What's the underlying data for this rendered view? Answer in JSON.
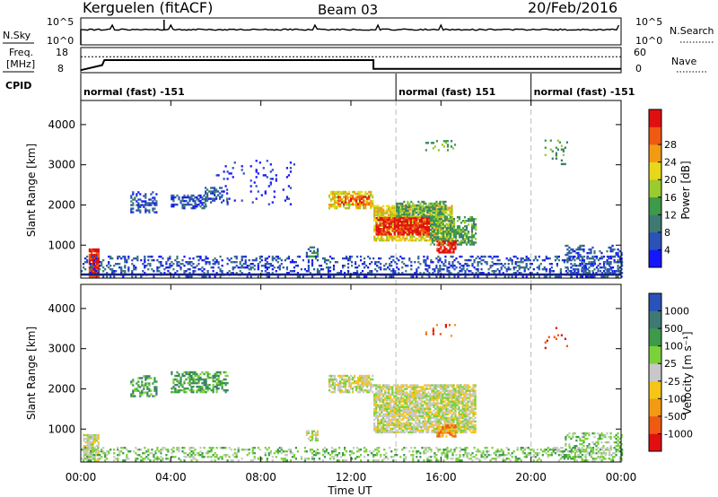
{
  "header": {
    "station": "Kerguelen (fitACF)",
    "beam": "Beam 03",
    "date": "20/Feb/2016"
  },
  "sky_panel": {
    "left_label": "N.Sky",
    "left_ticks": [
      "10^5",
      "10^0"
    ],
    "right_ticks": [
      "10^5",
      "10^0"
    ],
    "right_label": "N.Search"
  },
  "freq_panel": {
    "left_label_1": "Freq.",
    "left_label_2": "[MHz]",
    "left_ticks": [
      "18",
      "8"
    ],
    "right_ticks": [
      "60",
      "0"
    ],
    "right_label": "Nave",
    "freq_steps": [
      {
        "hour": 0.0,
        "mhz": 9.0
      },
      {
        "hour": 0.95,
        "mhz": 11.0
      },
      {
        "hour": 1.05,
        "mhz": 13.0
      },
      {
        "hour": 13.0,
        "mhz": 13.0
      },
      {
        "hour": 13.0,
        "mhz": 9.5
      },
      {
        "hour": 24.0,
        "mhz": 9.5
      }
    ],
    "nave_level": 38
  },
  "cpid": {
    "label": "CPID",
    "segments": [
      {
        "label": "normal (fast) -151",
        "start": 0,
        "end": 14
      },
      {
        "label": "normal (fast) 151",
        "start": 14,
        "end": 20
      },
      {
        "label": "normal (fast) -151",
        "start": 20,
        "end": 24
      }
    ]
  },
  "chart_data": [
    {
      "type": "heatmap",
      "name": "power",
      "ylabel": "Slant Range [km]",
      "yticks": [
        "1000",
        "2000",
        "3000",
        "4000"
      ],
      "ylim": [
        180,
        4600
      ],
      "xlim": [
        0,
        24
      ],
      "colorbar": {
        "label": "Power [dB]",
        "ticks": [
          "4",
          "8",
          "12",
          "16",
          "20",
          "24",
          "28"
        ],
        "colors": [
          "#1515ff",
          "#2a52b8",
          "#3d7a74",
          "#3d9a4a",
          "#9acb2f",
          "#e8d71a",
          "#f39a14",
          "#ef5a12",
          "#e01010"
        ]
      },
      "patches": [
        {
          "t": 0.35,
          "t2": 0.8,
          "r": 200,
          "r2": 900,
          "lvl": 8,
          "d": 0.9
        },
        {
          "t": 2.2,
          "t2": 3.4,
          "r": 1800,
          "r2": 2300,
          "lvl": 1,
          "d": 0.45
        },
        {
          "t": 4.0,
          "t2": 5.6,
          "r": 1900,
          "r2": 2250,
          "lvl": 1,
          "d": 0.5
        },
        {
          "t": 5.5,
          "t2": 6.5,
          "r": 2000,
          "r2": 2450,
          "lvl": 1,
          "d": 0.45
        },
        {
          "t": 11.0,
          "t2": 13.0,
          "r": 1900,
          "r2": 2350,
          "lvl": 5,
          "d": 0.65
        },
        {
          "t": 11.4,
          "t2": 12.8,
          "r": 2000,
          "r2": 2200,
          "lvl": 7,
          "d": 0.7
        },
        {
          "t": 13.0,
          "t2": 16.5,
          "r": 1100,
          "r2": 2000,
          "lvl": 5,
          "d": 0.75
        },
        {
          "t": 13.1,
          "t2": 15.5,
          "r": 1250,
          "r2": 1700,
          "lvl": 8,
          "d": 0.8
        },
        {
          "t": 14.0,
          "t2": 16.2,
          "r": 1700,
          "r2": 2100,
          "lvl": 3,
          "d": 0.6
        },
        {
          "t": 15.5,
          "t2": 17.5,
          "r": 1000,
          "r2": 1700,
          "lvl": 3,
          "d": 0.6
        },
        {
          "t": 15.8,
          "t2": 16.6,
          "r": 800,
          "r2": 1100,
          "lvl": 8,
          "d": 0.7
        },
        {
          "t": 10.0,
          "t2": 10.5,
          "r": 700,
          "r2": 950,
          "lvl": 2,
          "d": 0.6
        },
        {
          "t": 0.0,
          "t2": 24.0,
          "r": 200,
          "r2": 700,
          "lvl": 1,
          "d": 0.28
        },
        {
          "t": 21.5,
          "t2": 24.0,
          "r": 200,
          "r2": 1000,
          "lvl": 1,
          "d": 0.35
        },
        {
          "t": 6.0,
          "t2": 9.5,
          "r": 2000,
          "r2": 3100,
          "lvl": 0,
          "d": 0.05
        },
        {
          "t": 15.3,
          "t2": 16.6,
          "r": 3300,
          "r2": 3600,
          "lvl": 3,
          "d": 0.15
        },
        {
          "t": 20.6,
          "t2": 21.6,
          "r": 3000,
          "r2": 3600,
          "lvl": 3,
          "d": 0.12
        }
      ]
    },
    {
      "type": "heatmap",
      "name": "velocity",
      "ylabel": "Slant Range [km]",
      "yticks": [
        "1000",
        "2000",
        "3000",
        "4000"
      ],
      "ylim": [
        180,
        4600
      ],
      "xlim": [
        0,
        24
      ],
      "xticks": [
        "00:00",
        "04:00",
        "08:00",
        "12:00",
        "16:00",
        "20:00",
        "00:00"
      ],
      "xlabel": "Time UT",
      "colorbar": {
        "label": "Velocity [m s⁻¹]",
        "ticks": [
          "-1000",
          "-500",
          "-100",
          "-25",
          "25",
          "100",
          "500",
          "1000"
        ],
        "colors": [
          "#e01010",
          "#ef5a12",
          "#f39a14",
          "#f5c518",
          "#c8c8c8",
          "#7bd13a",
          "#3d9a4a",
          "#3d7a74",
          "#2a52b8"
        ]
      },
      "patches": [
        {
          "t": 0.1,
          "t2": 0.8,
          "r": 200,
          "r2": 850,
          "lvl": 4,
          "d": 0.8
        },
        {
          "t": 2.2,
          "t2": 3.4,
          "r": 1800,
          "r2": 2300,
          "lvl": 6,
          "d": 0.45
        },
        {
          "t": 4.0,
          "t2": 6.5,
          "r": 1900,
          "r2": 2400,
          "lvl": 6,
          "d": 0.5
        },
        {
          "t": 11.0,
          "t2": 13.0,
          "r": 1900,
          "r2": 2350,
          "lvl": 4,
          "d": 0.7
        },
        {
          "t": 13.0,
          "t2": 17.5,
          "r": 900,
          "r2": 2100,
          "lvl": 4,
          "d": 0.82
        },
        {
          "t": 15.8,
          "t2": 16.6,
          "r": 800,
          "r2": 1100,
          "lvl": 2,
          "d": 0.7
        },
        {
          "t": 0.0,
          "t2": 24.0,
          "r": 200,
          "r2": 550,
          "lvl": 5,
          "d": 0.3
        },
        {
          "t": 21.5,
          "t2": 24.0,
          "r": 200,
          "r2": 900,
          "lvl": 5,
          "d": 0.3
        },
        {
          "t": 10.0,
          "t2": 10.5,
          "r": 700,
          "r2": 950,
          "lvl": 4,
          "d": 0.6
        },
        {
          "t": 15.3,
          "t2": 16.6,
          "r": 3300,
          "r2": 3600,
          "lvl": 1,
          "d": 0.12
        },
        {
          "t": 20.6,
          "t2": 21.6,
          "r": 3000,
          "r2": 3600,
          "lvl": 0,
          "d": 0.1
        }
      ]
    }
  ]
}
